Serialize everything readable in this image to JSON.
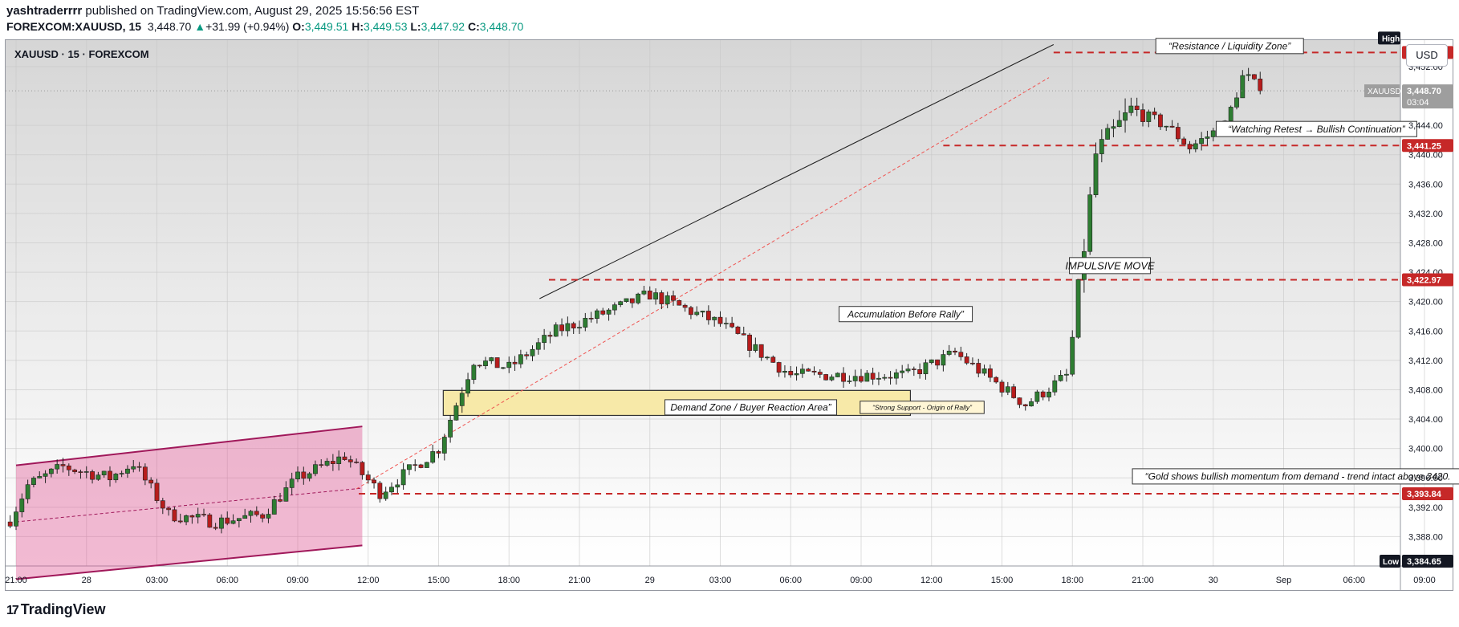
{
  "header": {
    "author": "yashtraderrrr",
    "published_text": "published on TradingView.com, August 29, 2025 15:56:56 EST",
    "symbol_line": "FOREXCOM:XAUUSD, 15",
    "last": "3,448.70",
    "change_arrow": "▲",
    "change": "+31.99 (+0.94%)",
    "o_label": "O:",
    "o": "3,449.51",
    "h_label": "H:",
    "h": "3,449.53",
    "l_label": "L:",
    "l": "3,447.92",
    "c_label": "C:",
    "c": "3,448.70"
  },
  "chart_title": "XAUUSD · 15 · FOREXCOM",
  "currency_button": "USD",
  "branding": "TradingView",
  "colors": {
    "up": "#089981",
    "down": "#f23645",
    "candle_up": "#2e7d32",
    "candle_down": "#b71c1c",
    "level": "#c62828",
    "channel": "#a0185a"
  },
  "chart_data": {
    "type": "candlestick",
    "ylim": [
      3384.0,
      3455.6
    ],
    "y_ticks": [
      3388,
      3392,
      3396,
      3400,
      3404,
      3408,
      3412,
      3416,
      3420,
      3424,
      3428,
      3432,
      3436,
      3440,
      3444,
      3452
    ],
    "y_tick_labels": [
      "3,388.00",
      "3,392.00",
      "3,396.00",
      "3,400.00",
      "3,404.00",
      "3,408.00",
      "3,412.00",
      "3,416.00",
      "3,420.00",
      "3,424.00",
      "3,428.00",
      "3,432.00",
      "3,436.00",
      "3,440.00",
      "3,444.00",
      "3,452.00"
    ],
    "x_ticks": [
      "21:00",
      "28",
      "03:00",
      "06:00",
      "09:00",
      "12:00",
      "15:00",
      "18:00",
      "21:00",
      "29",
      "03:00",
      "06:00",
      "09:00",
      "12:00",
      "15:00",
      "18:00",
      "21:00",
      "30",
      "Sep",
      "06:00",
      "09:00"
    ],
    "x_tick_hours": [
      0,
      3,
      6,
      9,
      12,
      15,
      18,
      21,
      24,
      27,
      30,
      33,
      36,
      39,
      42,
      45,
      48,
      51,
      54,
      57,
      60
    ],
    "price_path_hours": [
      -0.3,
      0.5,
      2,
      4,
      5,
      6.5,
      8.5,
      10.5,
      12,
      14,
      15.5,
      18,
      19.5,
      21,
      23,
      25.5,
      27,
      30,
      33,
      35,
      38,
      40,
      43,
      44.8,
      46,
      47.5,
      49,
      50,
      51.5,
      52.3,
      53
    ],
    "price_path_values": [
      3390,
      3395,
      3397.5,
      3396,
      3398,
      3391,
      3390,
      3391,
      3396,
      3399,
      3394,
      3400,
      3412,
      3411,
      3416,
      3419,
      3421,
      3417,
      3410,
      3410,
      3410,
      3413,
      3406,
      3410,
      3440,
      3446,
      3444,
      3441,
      3444,
      3451,
      3448.7
    ],
    "levels": [
      {
        "value": 3453.92,
        "label": "3,453.92"
      },
      {
        "value": 3441.25,
        "label": "3,441.25"
      },
      {
        "value": 3422.97,
        "label": "3,422.97"
      },
      {
        "value": 3393.84,
        "label": "3,393.84"
      }
    ],
    "current": {
      "value": 3448.7,
      "label": "3,448.70",
      "symbol": "XAUUSD",
      "countdown": "03:04"
    },
    "high_label": "High",
    "low": {
      "value": 3384.65,
      "label": "3,384.65",
      "tag": "Low"
    },
    "annotations": [
      {
        "text": "“Resistance / Liquidity Zone”",
        "hour": 51.7,
        "value": 3454.8
      },
      {
        "text": "“Watching Retest → Bullish Continuation”",
        "hour": 55.4,
        "value": 3443.5
      },
      {
        "text": "IMPULSIVE MOVE",
        "hour": 46.6,
        "value": 3424.9
      },
      {
        "text": "Accumulation Before Rally”",
        "hour": 37.9,
        "value": 3418.3
      },
      {
        "text": "Demand Zone / Buyer Reaction Area”",
        "hour": 31.3,
        "value": 3405.6
      },
      {
        "text": "“Strong Support - Origin of Rally”",
        "hour": 38.6,
        "value": 3405.6
      },
      {
        "text": "“Gold shows bullish momentum from demand - trend intact above 3420.",
        "hour": 54.6,
        "value": 3396.2
      }
    ]
  }
}
